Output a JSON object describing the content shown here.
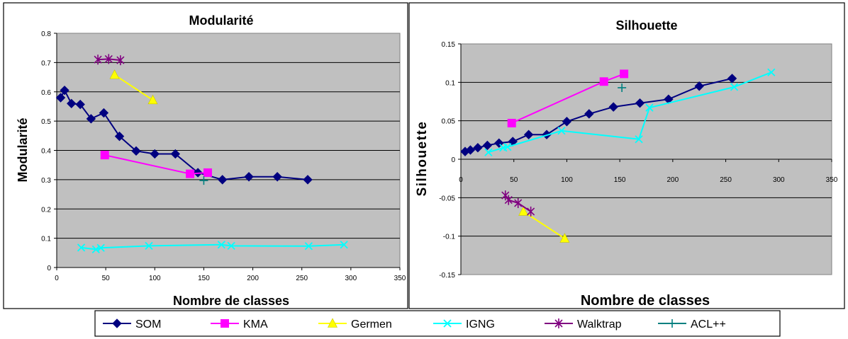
{
  "series_styles": [
    {
      "name": "SOM",
      "color": "#000080",
      "marker": "diamond"
    },
    {
      "name": "KMA",
      "color": "#FF00FF",
      "marker": "square"
    },
    {
      "name": "Germen",
      "color": "#FFFF00",
      "marker": "triangle"
    },
    {
      "name": "IGNG",
      "color": "#00FFFF",
      "marker": "x"
    },
    {
      "name": "Walktrap",
      "color": "#800080",
      "marker": "asterisk"
    },
    {
      "name": "ACL++",
      "color": "#008080",
      "marker": "plus"
    }
  ],
  "legend": {
    "items": [
      "SOM",
      "KMA",
      "Germen",
      "IGNG",
      "Walktrap",
      "ACL++"
    ]
  },
  "chart_data": [
    {
      "type": "line",
      "title": "Modularité",
      "xlabel": "Nombre de classes",
      "ylabel": "Modularité",
      "xlim": [
        0,
        350
      ],
      "ylim": [
        0,
        0.8
      ],
      "xticks": [
        0,
        50,
        100,
        150,
        200,
        250,
        300,
        350
      ],
      "yticks": [
        0,
        0.1,
        0.2,
        0.3,
        0.4,
        0.5,
        0.6,
        0.7,
        0.8
      ],
      "xtick_labels": [
        "0",
        "50",
        "100",
        "150",
        "200",
        "250",
        "300",
        "350"
      ],
      "ytick_labels": [
        "0",
        "0.1",
        "0.2",
        "0.3",
        "0.4",
        "0.5",
        "0.6",
        "0.7",
        "0.8"
      ],
      "grid": true,
      "series": [
        {
          "name": "SOM",
          "points": [
            [
              4,
              0.58
            ],
            [
              8,
              0.605
            ],
            [
              15,
              0.56
            ],
            [
              24,
              0.557
            ],
            [
              35,
              0.508
            ],
            [
              48,
              0.528
            ],
            [
              64,
              0.448
            ],
            [
              81,
              0.398
            ],
            [
              100,
              0.388
            ],
            [
              121,
              0.388
            ],
            [
              144,
              0.324
            ],
            [
              169,
              0.3
            ],
            [
              196,
              0.31
            ],
            [
              225,
              0.31
            ],
            [
              256,
              0.3
            ]
          ]
        },
        {
          "name": "KMA",
          "points": [
            [
              49,
              0.384
            ],
            [
              136,
              0.32
            ],
            [
              154,
              0.324
            ]
          ]
        },
        {
          "name": "Germen",
          "points": [
            [
              59,
              0.658
            ],
            [
              98,
              0.572
            ]
          ]
        },
        {
          "name": "IGNG",
          "points": [
            [
              25,
              0.068
            ],
            [
              40,
              0.062
            ],
            [
              45,
              0.067
            ],
            [
              94,
              0.074
            ],
            [
              168,
              0.078
            ],
            [
              178,
              0.074
            ],
            [
              257,
              0.073
            ],
            [
              293,
              0.078
            ]
          ]
        },
        {
          "name": "Walktrap",
          "points": [
            [
              42,
              0.71
            ],
            [
              53,
              0.712
            ],
            [
              65,
              0.708
            ]
          ]
        },
        {
          "name": "ACL++",
          "points": [
            [
              150,
              0.297
            ]
          ]
        }
      ]
    },
    {
      "type": "line",
      "title": "Silhouette",
      "xlabel": "Nombre de classes",
      "ylabel": "Silhouette",
      "xlim": [
        0,
        350
      ],
      "ylim": [
        -0.15,
        0.15
      ],
      "xticks": [
        0,
        50,
        100,
        150,
        200,
        250,
        300,
        350
      ],
      "yticks": [
        -0.15,
        -0.1,
        -0.05,
        0,
        0.05,
        0.1,
        0.15
      ],
      "xtick_labels": [
        "0",
        "50",
        "100",
        "150",
        "200",
        "250",
        "300",
        "350"
      ],
      "ytick_labels": [
        "-0.15",
        "-0.1",
        "-0.05",
        "0",
        "0.05",
        "0.1",
        "0.15"
      ],
      "grid": true,
      "series": [
        {
          "name": "SOM",
          "points": [
            [
              4,
              0.01
            ],
            [
              9,
              0.012
            ],
            [
              16,
              0.015
            ],
            [
              25,
              0.018
            ],
            [
              36,
              0.021
            ],
            [
              49,
              0.023
            ],
            [
              64,
              0.032
            ],
            [
              81,
              0.032
            ],
            [
              100,
              0.049
            ],
            [
              121,
              0.059
            ],
            [
              144,
              0.068
            ],
            [
              169,
              0.073
            ],
            [
              196,
              0.078
            ],
            [
              225,
              0.095
            ],
            [
              256,
              0.105
            ]
          ]
        },
        {
          "name": "KMA",
          "points": [
            [
              48,
              0.047
            ],
            [
              135,
              0.101
            ],
            [
              154,
              0.111
            ]
          ]
        },
        {
          "name": "Germen",
          "points": [
            [
              59,
              -0.068
            ],
            [
              98,
              -0.103
            ]
          ]
        },
        {
          "name": "IGNG",
          "points": [
            [
              26,
              0.009
            ],
            [
              40,
              0.015
            ],
            [
              44,
              0.016
            ],
            [
              95,
              0.037
            ],
            [
              168,
              0.026
            ],
            [
              178,
              0.067
            ],
            [
              258,
              0.094
            ],
            [
              293,
              0.113
            ]
          ]
        },
        {
          "name": "Walktrap",
          "points": [
            [
              42,
              -0.047
            ],
            [
              45,
              -0.053
            ],
            [
              54,
              -0.057
            ],
            [
              66,
              -0.068
            ]
          ]
        },
        {
          "name": "ACL++",
          "points": [
            [
              152,
              0.093
            ]
          ]
        }
      ]
    }
  ]
}
